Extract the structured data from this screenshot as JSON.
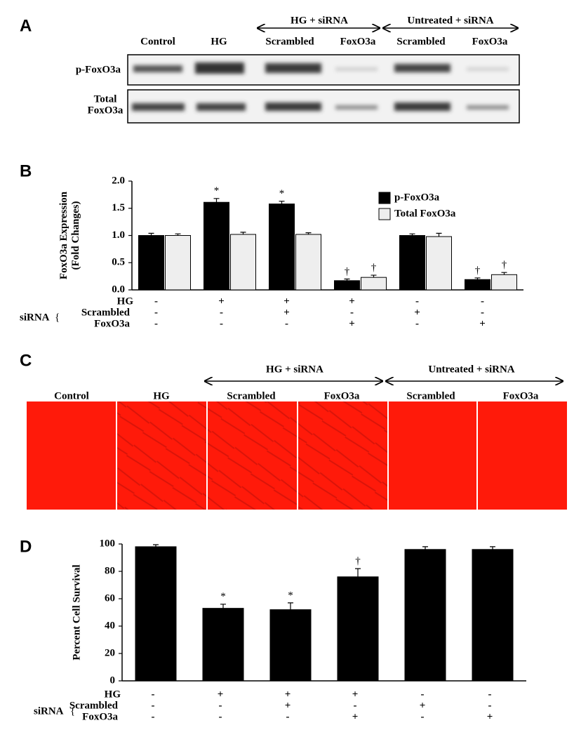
{
  "panel_a": {
    "letter": "A",
    "groups": [
      "HG + siRNA",
      "Untreated + siRNA"
    ],
    "columns": [
      "Control",
      "HG",
      "Scrambled",
      "FoxO3a",
      "Scrambled",
      "FoxO3a"
    ],
    "rows": [
      [
        "p-FoxO3a"
      ],
      [
        "Total",
        "FoxO3a"
      ]
    ]
  },
  "chart_data": [
    {
      "type": "bar",
      "letter": "B",
      "ylabel": [
        "FoxO3a Expression",
        "(Fold Changes)"
      ],
      "categories": [
        null,
        null,
        null,
        null,
        null,
        null
      ],
      "series": [
        {
          "name": "p-FoxO3a",
          "color": "#000000",
          "values": [
            1.0,
            1.61,
            1.58,
            0.17,
            1.0,
            0.19
          ],
          "errors": [
            0.04,
            0.07,
            0.05,
            0.03,
            0.03,
            0.03
          ],
          "significance": [
            null,
            "*",
            "*",
            "†",
            null,
            "†"
          ]
        },
        {
          "name": "Total FoxO3a",
          "color": "#eeeeee",
          "values": [
            1.0,
            1.02,
            1.02,
            0.23,
            0.98,
            0.28
          ],
          "errors": [
            0.03,
            0.04,
            0.03,
            0.04,
            0.06,
            0.04
          ],
          "significance": [
            null,
            null,
            null,
            "†",
            null,
            "†"
          ]
        }
      ],
      "ylim": [
        0,
        2.0
      ],
      "yticks": [
        {
          "value": 0,
          "label": "0.0"
        },
        {
          "value": 0.5,
          "label": "0.5"
        },
        {
          "value": 1.0,
          "label": "1.0"
        },
        {
          "value": 1.5,
          "label": "1.5"
        },
        {
          "value": 2.0,
          "label": "2.0"
        }
      ],
      "legend": "top-right",
      "treatments": {
        "group": "siRNA",
        "rows": [
          {
            "label": "HG",
            "signs": [
              "-",
              "+",
              "+",
              "+",
              "-",
              "-"
            ]
          },
          {
            "label": "Scrambled",
            "signs": [
              "-",
              "-",
              "+",
              "-",
              "+",
              "-"
            ]
          },
          {
            "label": "FoxO3a",
            "signs": [
              "-",
              "-",
              "-",
              "+",
              "-",
              "+"
            ]
          }
        ]
      }
    },
    {
      "type": "bar",
      "letter": "D",
      "ylabel": [
        "Percent  Cell Survival"
      ],
      "categories": [
        null,
        null,
        null,
        null,
        null,
        null
      ],
      "series": [
        {
          "color": "#000000",
          "values": [
            98,
            53,
            52,
            76,
            96,
            96
          ],
          "errors": [
            1.5,
            3,
            5,
            6,
            2,
            2
          ],
          "significance": [
            null,
            "*",
            "*",
            "†",
            null,
            null
          ]
        }
      ],
      "ylim": [
        0,
        100
      ],
      "yticks": [
        0,
        20,
        40,
        60,
        80,
        100
      ],
      "treatments": {
        "group": "siRNA",
        "rows": [
          {
            "label": "HG",
            "signs": [
              "-",
              "+",
              "+",
              "+",
              "-",
              "-"
            ]
          },
          {
            "label": "Scrambled",
            "signs": [
              "-",
              "-",
              "+",
              "-",
              "+",
              "-"
            ]
          },
          {
            "label": "FoxO3a",
            "signs": [
              "-",
              "-",
              "-",
              "+",
              "-",
              "+"
            ]
          }
        ]
      }
    }
  ],
  "panel_c": {
    "letter": "C",
    "groups": [
      "HG + siRNA",
      "Untreated + siRNA"
    ],
    "columns": [
      "Control",
      "HG",
      "Scrambled",
      "FoxO3a",
      "Scrambled",
      "FoxO3a"
    ]
  }
}
